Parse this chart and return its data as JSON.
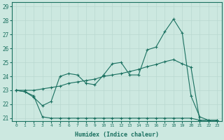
{
  "xlabel": "Humidex (Indice chaleur)",
  "xlim": [
    -0.5,
    23.5
  ],
  "ylim": [
    20.8,
    29.3
  ],
  "xticks": [
    0,
    1,
    2,
    3,
    4,
    5,
    6,
    7,
    8,
    9,
    10,
    11,
    12,
    13,
    14,
    15,
    16,
    17,
    18,
    19,
    20,
    21,
    22,
    23
  ],
  "yticks": [
    21,
    22,
    23,
    24,
    25,
    26,
    27,
    28,
    29
  ],
  "bg_color": "#cce8e0",
  "line_color": "#1a7060",
  "grid_color": "#b8d8d0",
  "line1_x": [
    0,
    1,
    2,
    3,
    4,
    5,
    6,
    7,
    8,
    9,
    10,
    11,
    12,
    13,
    14,
    15,
    16,
    17,
    18,
    19,
    20,
    21,
    22,
    23
  ],
  "line1_y": [
    23.0,
    22.9,
    22.5,
    21.9,
    22.2,
    24.0,
    24.2,
    24.1,
    23.5,
    23.4,
    24.1,
    24.9,
    25.0,
    24.1,
    24.1,
    25.9,
    26.1,
    27.2,
    28.1,
    27.1,
    22.6,
    21.1,
    20.85,
    20.85
  ],
  "line2_x": [
    0,
    1,
    2,
    3,
    4,
    5,
    6,
    7,
    8,
    9,
    10,
    11,
    12,
    13,
    14,
    15,
    16,
    17,
    18,
    19,
    20,
    21,
    22,
    23
  ],
  "line2_y": [
    23.0,
    23.0,
    23.0,
    23.1,
    23.2,
    23.3,
    23.5,
    23.6,
    23.7,
    23.8,
    24.0,
    24.1,
    24.2,
    24.35,
    24.5,
    24.7,
    24.85,
    25.05,
    25.2,
    24.9,
    24.65,
    20.85,
    20.85,
    20.85
  ],
  "line3_x": [
    0,
    1,
    2,
    3,
    4,
    5,
    6,
    7,
    8,
    9,
    10,
    11,
    12,
    13,
    14,
    15,
    16,
    17,
    18,
    19,
    20,
    21,
    22,
    23
  ],
  "line3_y": [
    23.0,
    22.9,
    22.6,
    21.1,
    21.0,
    21.0,
    21.0,
    21.0,
    21.0,
    21.0,
    21.0,
    21.0,
    21.0,
    21.0,
    21.0,
    21.0,
    21.0,
    21.0,
    21.0,
    21.0,
    21.0,
    20.85,
    20.85,
    20.85
  ]
}
